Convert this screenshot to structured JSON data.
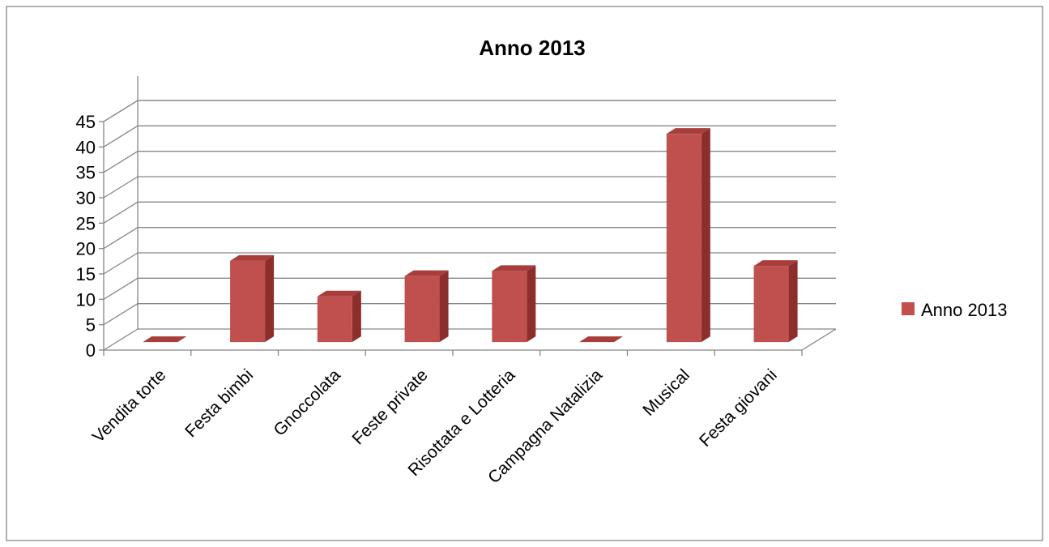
{
  "chart_data": {
    "type": "bar",
    "title": "Anno 2013",
    "categories": [
      "Vendita torte",
      "Festa bimbi",
      "Gnoccolata",
      "Feste private",
      "Risottata e Lotteria",
      "Campagna Natalizia",
      "Musical",
      "Festa giovani"
    ],
    "series": [
      {
        "name": "Anno 2013",
        "values": [
          0,
          16,
          9,
          13,
          14,
          0,
          41,
          15
        ]
      }
    ],
    "ylim": [
      0,
      45
    ],
    "yticks": [
      0,
      5,
      10,
      15,
      20,
      25,
      30,
      35,
      40,
      45
    ],
    "xlabel": "",
    "ylabel": "",
    "grid": true,
    "three_d": true,
    "legend_position": "right",
    "colors": {
      "bar_front": "#C0504D",
      "bar_side": "#8C2E2B",
      "bar_top": "#A83E3B",
      "grid": "#868686",
      "frame": "#868686"
    }
  }
}
